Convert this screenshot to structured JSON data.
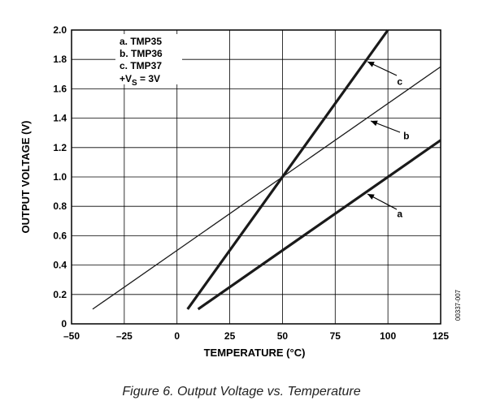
{
  "chart_data": {
    "type": "line",
    "xlabel": "TEMPERATURE (°C)",
    "ylabel": "OUTPUT VOLTAGE (V)",
    "xlim": [
      -50,
      125
    ],
    "ylim": [
      0,
      2.0
    ],
    "x_ticks": [
      "–50",
      "–25",
      "0",
      "25",
      "50",
      "75",
      "100",
      "125"
    ],
    "y_ticks": [
      "0",
      "0.2",
      "0.4",
      "0.6",
      "0.8",
      "1.0",
      "1.2",
      "1.4",
      "1.6",
      "1.8",
      "2.0"
    ],
    "grid": true,
    "legend": {
      "position": "top-left",
      "lines": [
        "a.  TMP35",
        "b.  TMP36",
        "c.  TMP37",
        "+V",
        "S",
        " = 3V"
      ]
    },
    "series": [
      {
        "name": "a",
        "x": [
          10,
          125
        ],
        "y": [
          0.1,
          1.25
        ],
        "weight": "bold"
      },
      {
        "name": "b",
        "x": [
          -40,
          125
        ],
        "y": [
          0.1,
          1.75
        ],
        "weight": "thin"
      },
      {
        "name": "c",
        "x": [
          5,
          100
        ],
        "y": [
          0.1,
          2.0
        ],
        "weight": "bold"
      }
    ],
    "annotations": [
      {
        "label": "a",
        "x": 102,
        "y": 0.75
      },
      {
        "label": "b",
        "x": 105,
        "y": 1.28
      },
      {
        "label": "c",
        "x": 102,
        "y": 1.65
      }
    ],
    "side_code": "00337-007",
    "caption": "Figure 6. Output Voltage vs. Temperature"
  }
}
